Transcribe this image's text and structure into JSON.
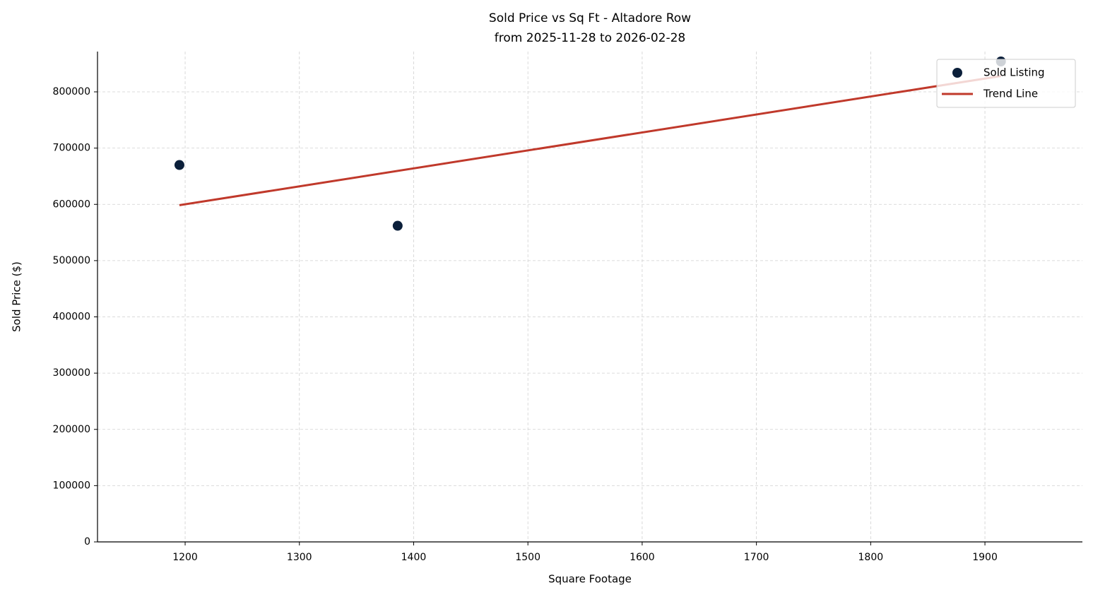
{
  "chart_data": {
    "type": "scatter",
    "title": "Sold Price vs Sq Ft - Altadore Row",
    "subtitle": "from 2025-11-28 to 2026-02-28",
    "x_label": "Square Footage",
    "y_label": "Sold Price ($)",
    "xlim": [
      1123.3,
      1985.3
    ],
    "ylim": [
      0,
      871600
    ],
    "xticks": [
      1200,
      1300,
      1400,
      1500,
      1600,
      1700,
      1800,
      1900
    ],
    "yticks": [
      0,
      100000,
      200000,
      300000,
      400000,
      500000,
      600000,
      700000,
      800000
    ],
    "grid": true,
    "legend": "upper right",
    "series": [
      {
        "name": "Sold Listing",
        "type": "scatter",
        "color": "#0b1f3a",
        "x": [
          1195,
          1386,
          1914
        ],
        "values": [
          670000,
          562000,
          854000
        ]
      },
      {
        "name": "Trend Line",
        "type": "line",
        "color": "#c0392b",
        "x": [
          1195,
          1914
        ],
        "values": [
          598500,
          828100
        ]
      }
    ]
  }
}
